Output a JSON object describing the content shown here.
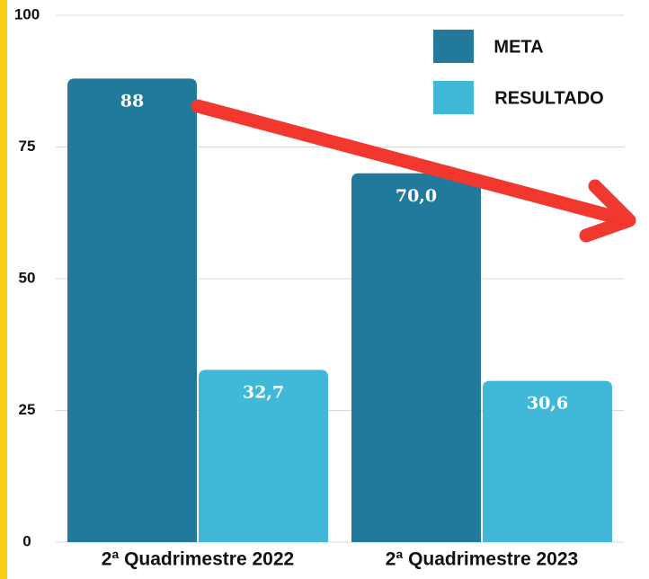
{
  "chart_data": {
    "type": "bar",
    "categories": [
      "2ª Quadrimestre 2022",
      "2ª Quadrimestre 2023"
    ],
    "series": [
      {
        "name": "META",
        "color": "#217a9c",
        "values": [
          88,
          70.0
        ],
        "value_labels": [
          "88",
          "70,0"
        ]
      },
      {
        "name": "RESULTADO",
        "color": "#41b8d8",
        "values": [
          32.7,
          30.6
        ],
        "value_labels": [
          "32,7",
          "30,6"
        ]
      }
    ],
    "ylim": [
      0,
      100
    ],
    "yticks": [
      0,
      25,
      50,
      75,
      100
    ],
    "grid": true,
    "legend": "top-right"
  }
}
